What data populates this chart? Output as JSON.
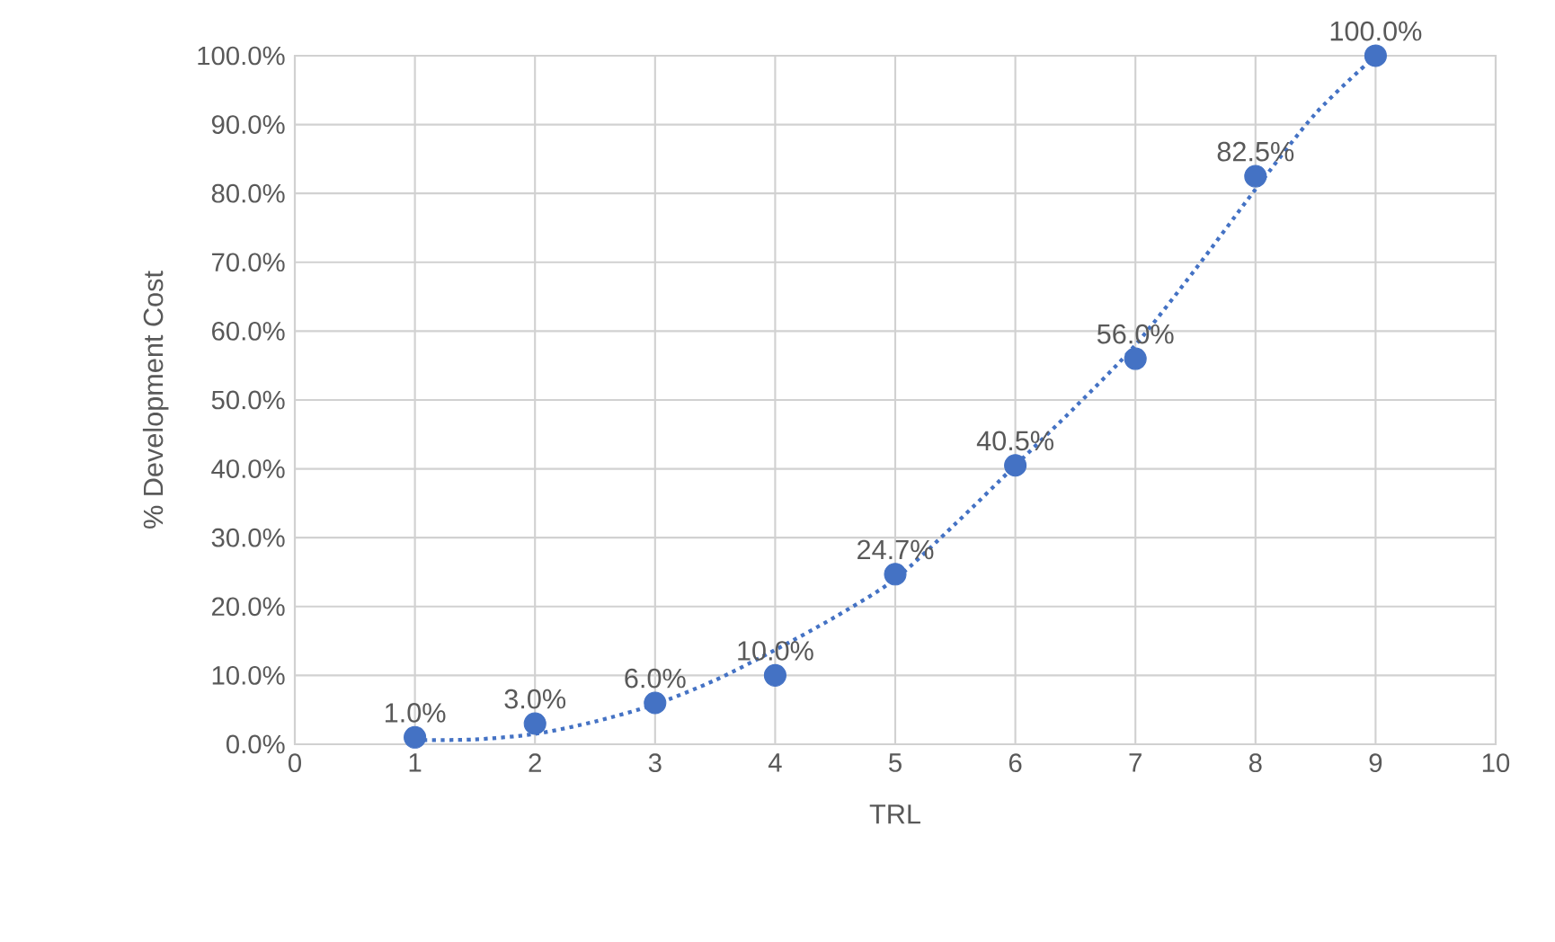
{
  "chart_data": {
    "type": "scatter",
    "xlabel": "TRL",
    "ylabel": "% Development Cost",
    "xlim": [
      0,
      10
    ],
    "xticks": [
      0,
      1,
      2,
      3,
      4,
      5,
      6,
      7,
      8,
      9,
      10
    ],
    "ylim": [
      0,
      100
    ],
    "yticks": [
      {
        "value": 0,
        "label": "0.0%"
      },
      {
        "value": 10,
        "label": "10.0%"
      },
      {
        "value": 20,
        "label": "20.0%"
      },
      {
        "value": 30,
        "label": "30.0%"
      },
      {
        "value": 40,
        "label": "40.0%"
      },
      {
        "value": 50,
        "label": "50.0%"
      },
      {
        "value": 60,
        "label": "60.0%"
      },
      {
        "value": 70,
        "label": "70.0%"
      },
      {
        "value": 80,
        "label": "80.0%"
      },
      {
        "value": 90,
        "label": "90.0%"
      },
      {
        "value": 100,
        "label": "100.0%"
      }
    ],
    "grid": true,
    "series": [
      {
        "color": "#4472c4",
        "marker": "circle",
        "x": [
          1,
          2,
          3,
          4,
          5,
          6,
          7,
          8,
          9
        ],
        "values": [
          1.0,
          3.0,
          6.0,
          10.0,
          24.7,
          40.5,
          56.0,
          82.5,
          100.0
        ],
        "value_labels": [
          "1.0%",
          "3.0%",
          "6.0%",
          "10.0%",
          "24.7%",
          "40.5%",
          "56.0%",
          "82.5%",
          "100.0%"
        ]
      },
      {
        "type": "line",
        "color": "#4472c4",
        "marker": "none",
        "line_style": "dotted",
        "x": [
          1,
          1.5,
          2,
          2.5,
          3,
          3.5,
          4,
          4.5,
          5,
          5.5,
          6,
          6.5,
          7,
          7.5,
          8,
          8.5,
          9
        ],
        "values": [
          0.6,
          0.7,
          1.5,
          3.3,
          5.8,
          9.3,
          13.7,
          18.5,
          24,
          32,
          40.5,
          49,
          58,
          69,
          80.6,
          91.6,
          100
        ]
      }
    ]
  }
}
